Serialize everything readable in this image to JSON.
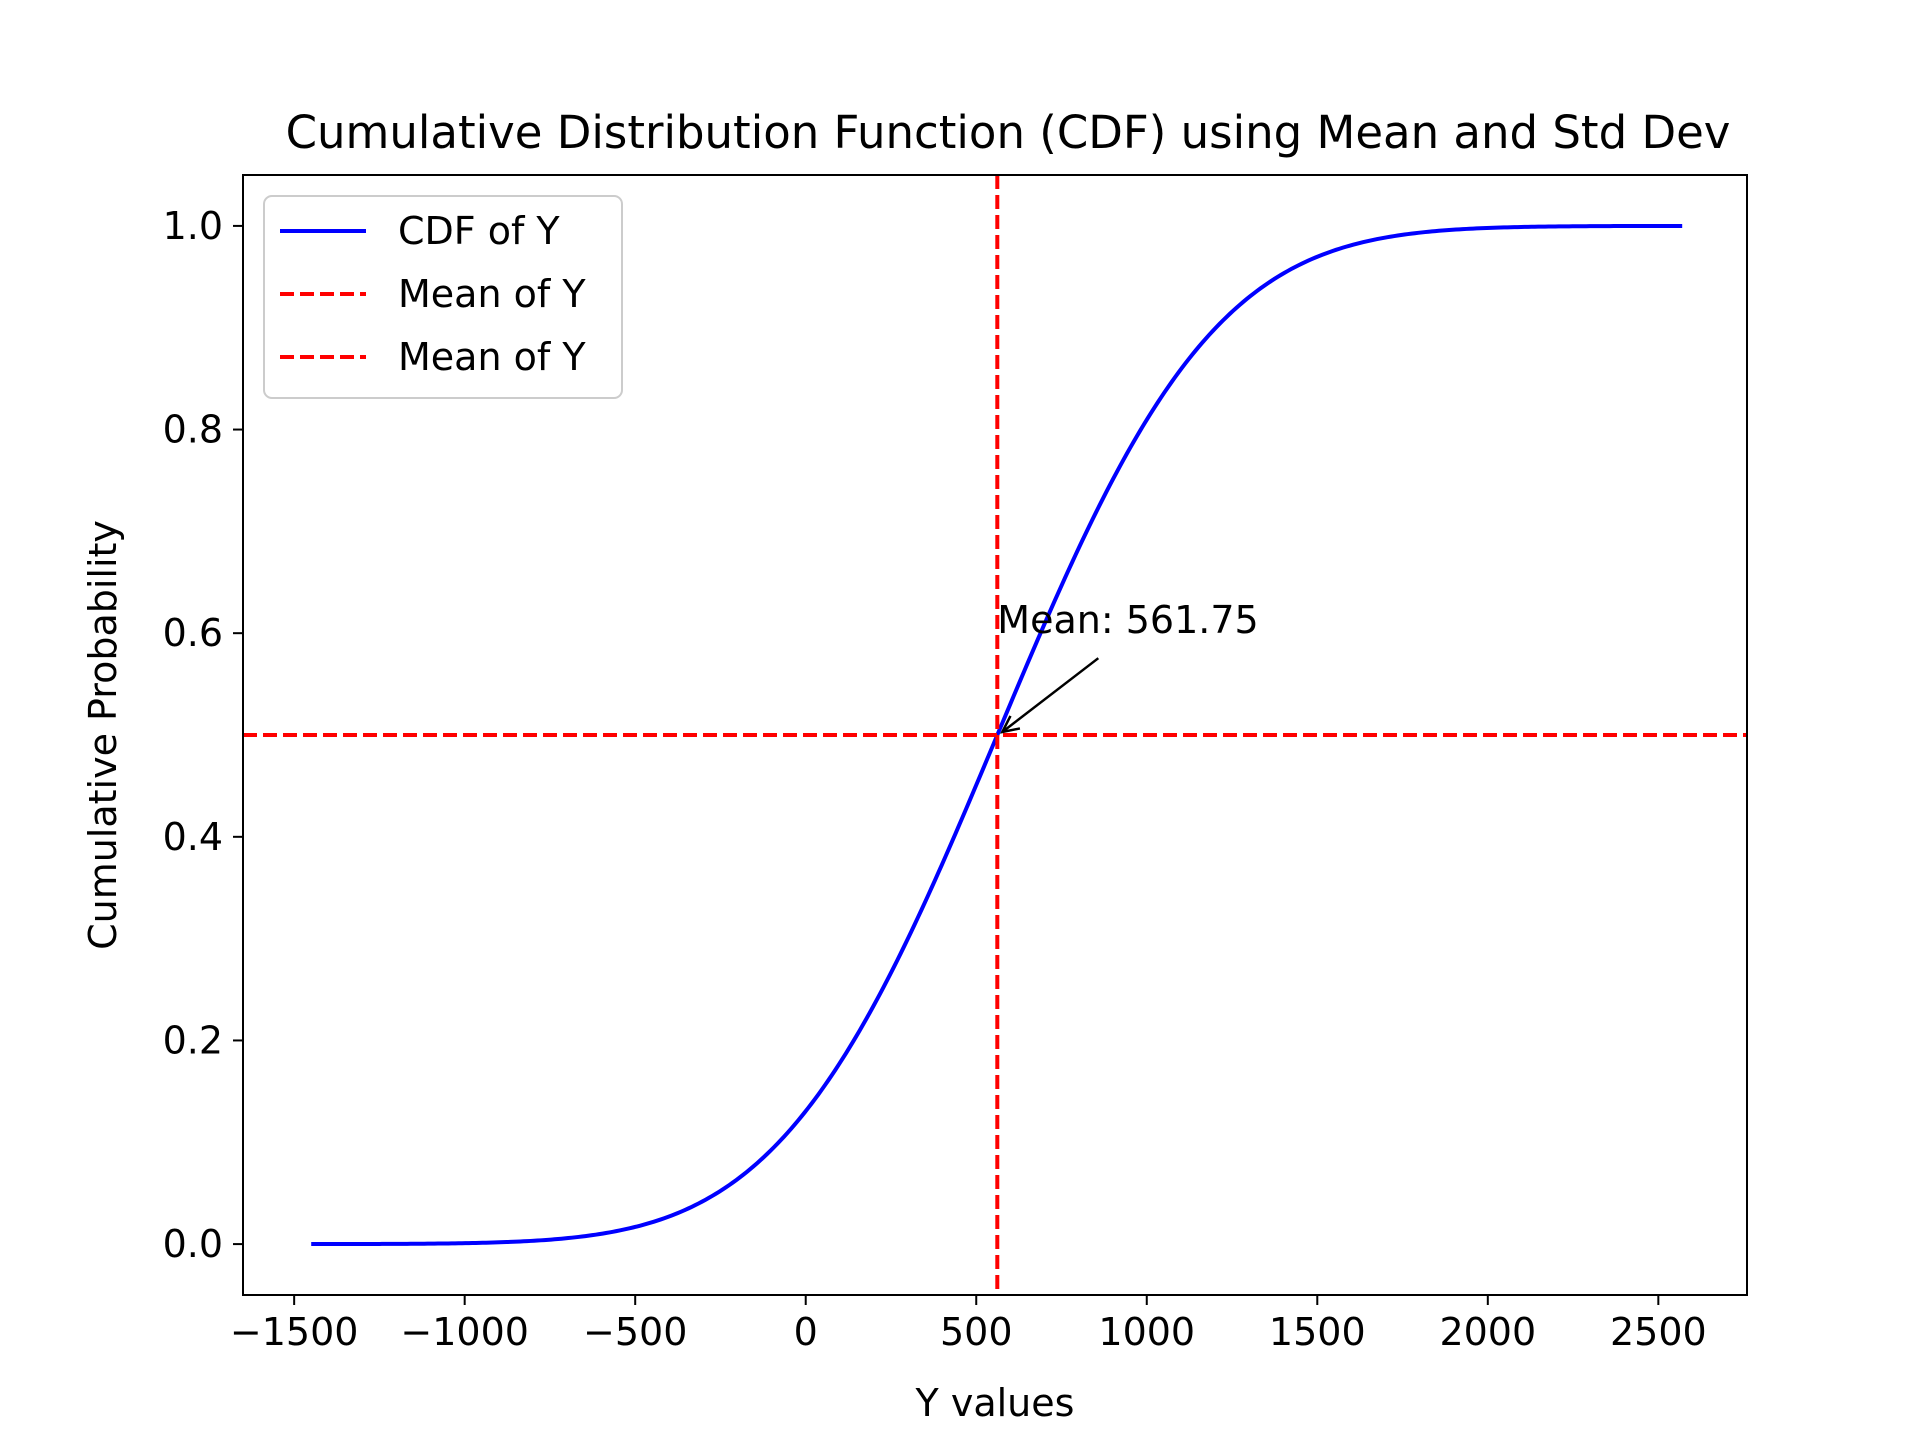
{
  "chart_data": {
    "type": "line",
    "title": "Cumulative Distribution Function (CDF) using Mean and Std Dev",
    "xlabel": "Y values",
    "ylabel": "Cumulative Probability",
    "xlim": [
      -1650,
      2760
    ],
    "ylim": [
      -0.05,
      1.05
    ],
    "xticks": [
      -1500,
      -1000,
      -500,
      0,
      500,
      1000,
      1500,
      2000,
      2500
    ],
    "xtick_labels": [
      "−1500",
      "−1000",
      "−500",
      "0",
      "500",
      "1000",
      "1500",
      "2000",
      "2500"
    ],
    "yticks": [
      0.0,
      0.2,
      0.4,
      0.6,
      0.8,
      1.0
    ],
    "ytick_labels": [
      "0.0",
      "0.2",
      "0.4",
      "0.6",
      "0.8",
      "1.0"
    ],
    "grid": false,
    "legend_position": "top-left",
    "series": [
      {
        "name": "CDF of Y",
        "kind": "normal-cdf",
        "mean": 561.75,
        "std": 500,
        "x_range": [
          -1450,
          2570
        ],
        "color": "#0000ff",
        "style": "solid"
      }
    ],
    "reference_lines": [
      {
        "name": "Mean of Y",
        "orientation": "vertical",
        "value": 561.75,
        "color": "#ff0000",
        "style": "dashed"
      },
      {
        "name": "Mean of Y",
        "orientation": "horizontal",
        "value": 0.5,
        "color": "#ff0000",
        "style": "dashed"
      }
    ],
    "annotation": {
      "text": "Mean: 561.75",
      "point": [
        561.75,
        0.5
      ],
      "text_position": [
        561.75,
        0.6
      ]
    }
  }
}
